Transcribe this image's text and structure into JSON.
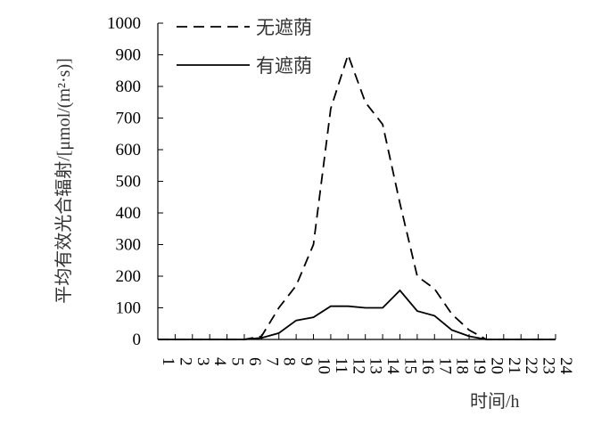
{
  "chart_data": {
    "type": "line",
    "xlabel": "时间/h",
    "ylabel": "平均有效光合辐射/[μmol/(m²·s)]",
    "ylim": [
      0,
      1000
    ],
    "yticks": [
      0,
      100,
      200,
      300,
      400,
      500,
      600,
      700,
      800,
      900,
      1000
    ],
    "x": [
      1,
      2,
      3,
      4,
      5,
      6,
      7,
      8,
      9,
      10,
      11,
      12,
      13,
      14,
      15,
      16,
      17,
      18,
      19,
      20,
      21,
      22,
      23,
      24
    ],
    "xtick_labels": [
      "1",
      "2",
      "3",
      "4",
      "5",
      "6",
      "7",
      "8",
      "9",
      "10",
      "11",
      "12",
      "13",
      "14",
      "15",
      "16",
      "17",
      "18",
      "19",
      "20",
      "21",
      "22",
      "23",
      "24"
    ],
    "legend_position": "top-left",
    "grid": false,
    "series": [
      {
        "name": "无遮荫",
        "style": "dashed",
        "values": [
          0,
          0,
          0,
          0,
          0,
          0,
          10,
          100,
          170,
          300,
          730,
          900,
          750,
          680,
          430,
          200,
          160,
          80,
          30,
          0,
          0,
          0,
          0,
          0
        ]
      },
      {
        "name": "有遮荫",
        "style": "solid",
        "values": [
          0,
          0,
          0,
          0,
          0,
          0,
          5,
          20,
          60,
          70,
          105,
          105,
          100,
          100,
          155,
          90,
          75,
          30,
          10,
          0,
          0,
          0,
          0,
          0
        ]
      }
    ]
  }
}
